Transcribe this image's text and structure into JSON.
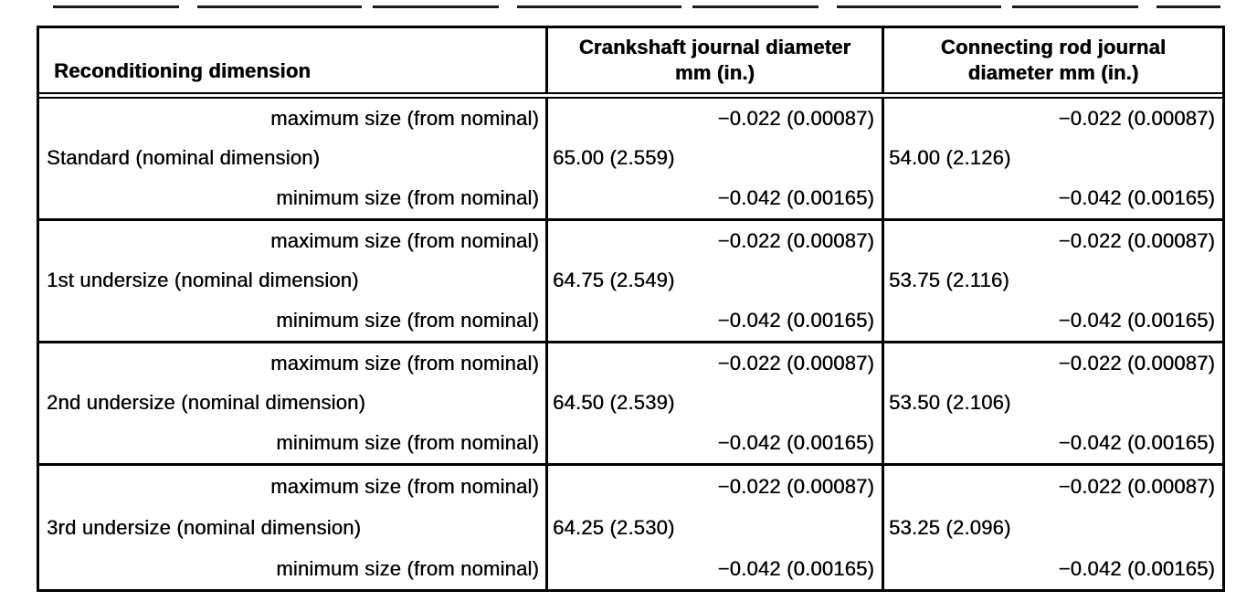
{
  "colors": {
    "ink": "#000000",
    "paper": "#ffffff"
  },
  "table": {
    "header": {
      "col1": "Reconditioning dimension",
      "col2": {
        "line1": "Crankshaft journal diameter",
        "line2": "mm (in.)"
      },
      "col3": {
        "line1": "Connecting rod journal",
        "line2": "diameter mm (in.)"
      }
    },
    "groups": [
      {
        "max_label": "maximum size (from nominal)",
        "label": "Standard (nominal dimension)",
        "min_label": "minimum size (from nominal)",
        "crank": {
          "max": "−0.022 (0.00087)",
          "nominal": "65.00 (2.559)",
          "min": "−0.042 (0.00165)"
        },
        "rod": {
          "max": "−0.022 (0.00087)",
          "nominal": "54.00 (2.126)",
          "min": "−0.042 (0.00165)"
        }
      },
      {
        "max_label": "maximum size (from nominal)",
        "label": "1st undersize (nominal dimension)",
        "min_label": "minimum size (from nominal)",
        "crank": {
          "max": "−0.022 (0.00087)",
          "nominal": "64.75 (2.549)",
          "min": "−0.042 (0.00165)"
        },
        "rod": {
          "max": "−0.022 (0.00087)",
          "nominal": "53.75 (2.116)",
          "min": "−0.042 (0.00165)"
        }
      },
      {
        "max_label": "maximum size (from nominal)",
        "label": "2nd undersize (nominal dimension)",
        "min_label": "minimum size (from nominal)",
        "crank": {
          "max": "−0.022 (0.00087)",
          "nominal": "64.50 (2.539)",
          "min": "−0.042 (0.00165)"
        },
        "rod": {
          "max": "−0.022 (0.00087)",
          "nominal": "53.50 (2.106)",
          "min": "−0.042 (0.00165)"
        }
      },
      {
        "max_label": "maximum size (from nominal)",
        "label": "3rd undersize (nominal dimension)",
        "min_label": "minimum size (from nominal)",
        "crank": {
          "max": "−0.022 (0.00087)",
          "nominal": "64.25 (2.530)",
          "min": "−0.042 (0.00165)"
        },
        "rod": {
          "max": "−0.022 (0.00087)",
          "nominal": "53.25 (2.096)",
          "min": "−0.042 (0.00165)"
        }
      }
    ]
  }
}
